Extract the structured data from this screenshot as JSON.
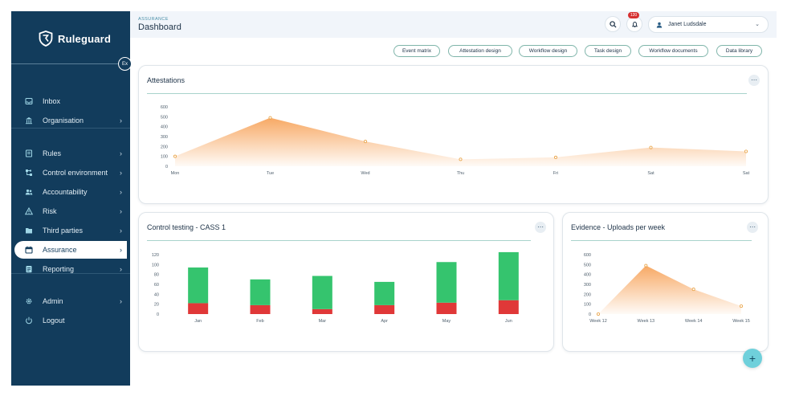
{
  "brand": {
    "name": "Ruleguard",
    "collapse_label": "Ex"
  },
  "sidebar": {
    "items": [
      {
        "label": "Inbox",
        "icon": "inbox-icon",
        "chevron": false
      },
      {
        "label": "Organisation",
        "icon": "bank-icon",
        "chevron": true
      },
      {
        "label": "Rules",
        "icon": "rules-icon",
        "chevron": true
      },
      {
        "label": "Control environment",
        "icon": "hierarchy-icon",
        "chevron": true
      },
      {
        "label": "Accountability",
        "icon": "people-icon",
        "chevron": true
      },
      {
        "label": "Risk",
        "icon": "warning-icon",
        "chevron": true
      },
      {
        "label": "Third parties",
        "icon": "folder-icon",
        "chevron": true
      },
      {
        "label": "Assurance",
        "icon": "calendar-icon",
        "chevron": true,
        "active": true
      },
      {
        "label": "Reporting",
        "icon": "report-icon",
        "chevron": true
      },
      {
        "label": "Admin",
        "icon": "gear-icon",
        "chevron": true
      },
      {
        "label": "Logout",
        "icon": "power-icon",
        "chevron": false
      }
    ]
  },
  "header": {
    "breadcrumb": "ASSURANCE",
    "title": "Dashboard",
    "notification_count": "120",
    "user_name": "Janet Ludsdale"
  },
  "pills": [
    "Event matrix",
    "Attestation design",
    "Workflow design",
    "Task design",
    "Workflow documents",
    "Data library"
  ],
  "cards": {
    "attestations": {
      "title": "Attestations"
    },
    "control_testing": {
      "title": "Control testing - CASS 1"
    },
    "evidence": {
      "title": "Evidence - Uploads per week"
    }
  },
  "colors": {
    "sidebar": "#123c5c",
    "accent_orange": "#f7a45c",
    "bar_green": "#35c46e",
    "bar_red": "#e03838",
    "teal": "#6fd0db"
  },
  "chart_data": [
    {
      "type": "area",
      "title": "Attestations",
      "x": [
        "Mon",
        "Tue",
        "Wed",
        "Thu",
        "Fri",
        "Sat",
        "Sat"
      ],
      "values": [
        100,
        490,
        250,
        70,
        90,
        190,
        150
      ],
      "y_ticks": [
        "600",
        "500",
        "400",
        "300",
        "200",
        "100",
        "0"
      ],
      "ylim": [
        0,
        600
      ]
    },
    {
      "type": "bar",
      "title": "Control testing - CASS 1",
      "categories": [
        "Jan",
        "Feb",
        "Mar",
        "Apr",
        "May",
        "Jun"
      ],
      "series": [
        {
          "color": "#e03838",
          "values": [
            22,
            18,
            10,
            18,
            23,
            28
          ]
        },
        {
          "color": "#35c46e",
          "values": [
            72,
            52,
            67,
            47,
            82,
            97
          ]
        }
      ],
      "stacked": true,
      "y_ticks": [
        "120",
        "100",
        "80",
        "60",
        "40",
        "20",
        "0"
      ],
      "ylim": [
        0,
        120
      ]
    },
    {
      "type": "area",
      "title": "Evidence - Uploads per week",
      "x": [
        "Week 12",
        "Week 13",
        "Week 14",
        "Week 15"
      ],
      "values": [
        0,
        490,
        250,
        80
      ],
      "y_ticks": [
        "600",
        "500",
        "400",
        "300",
        "200",
        "100",
        "0"
      ],
      "ylim": [
        0,
        600
      ]
    }
  ]
}
